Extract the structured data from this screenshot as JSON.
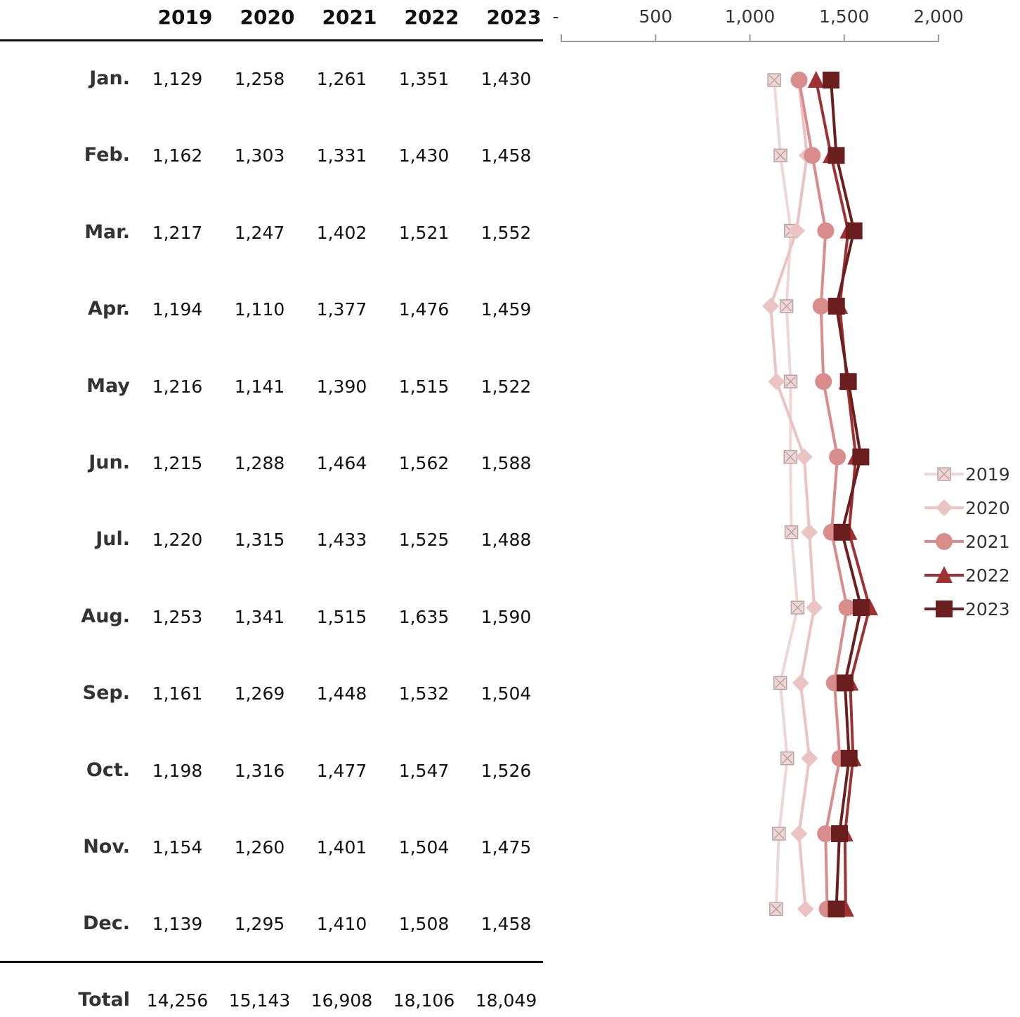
{
  "table": {
    "years": [
      "2019",
      "2020",
      "2021",
      "2022",
      "2023"
    ],
    "rows": [
      {
        "month": "Jan.",
        "values": [
          "1,129",
          "1,258",
          "1,261",
          "1,351",
          "1,430"
        ]
      },
      {
        "month": "Feb.",
        "values": [
          "1,162",
          "1,303",
          "1,331",
          "1,430",
          "1,458"
        ]
      },
      {
        "month": "Mar.",
        "values": [
          "1,217",
          "1,247",
          "1,402",
          "1,521",
          "1,552"
        ]
      },
      {
        "month": "Apr.",
        "values": [
          "1,194",
          "1,110",
          "1,377",
          "1,476",
          "1,459"
        ]
      },
      {
        "month": "May",
        "values": [
          "1,216",
          "1,141",
          "1,390",
          "1,515",
          "1,522"
        ]
      },
      {
        "month": "Jun.",
        "values": [
          "1,215",
          "1,288",
          "1,464",
          "1,562",
          "1,588"
        ]
      },
      {
        "month": "Jul.",
        "values": [
          "1,220",
          "1,315",
          "1,433",
          "1,525",
          "1,488"
        ]
      },
      {
        "month": "Aug.",
        "values": [
          "1,253",
          "1,341",
          "1,515",
          "1,635",
          "1,590"
        ]
      },
      {
        "month": "Sep.",
        "values": [
          "1,161",
          "1,269",
          "1,448",
          "1,532",
          "1,504"
        ]
      },
      {
        "month": "Oct.",
        "values": [
          "1,198",
          "1,316",
          "1,477",
          "1,547",
          "1,526"
        ]
      },
      {
        "month": "Nov.",
        "values": [
          "1,154",
          "1,260",
          "1,401",
          "1,504",
          "1,475"
        ]
      },
      {
        "month": "Dec.",
        "values": [
          "1,139",
          "1,295",
          "1,410",
          "1,508",
          "1,458"
        ]
      }
    ],
    "total": {
      "label": "Total",
      "values": [
        "14,256",
        "15,143",
        "16,908",
        "18,106",
        "18,049"
      ]
    }
  },
  "chart_data": {
    "type": "line",
    "orientation": "vertical-categories",
    "categories": [
      "Jan.",
      "Feb.",
      "Mar.",
      "Apr.",
      "May",
      "Jun.",
      "Jul.",
      "Aug.",
      "Sep.",
      "Oct.",
      "Nov.",
      "Dec."
    ],
    "xlim": [
      0,
      2000
    ],
    "tick_values": [
      0,
      500,
      1000,
      1500,
      2000
    ],
    "tick_labels": [
      "-",
      "500",
      "1,000",
      "1,500",
      "2,000"
    ],
    "legend_position": "right",
    "grid": false,
    "series": [
      {
        "name": "2019",
        "color": "#f0d7d7",
        "marker": "square-x",
        "values": [
          1129,
          1162,
          1217,
          1194,
          1216,
          1215,
          1220,
          1253,
          1161,
          1198,
          1154,
          1139
        ]
      },
      {
        "name": "2020",
        "color": "#ebc3c3",
        "marker": "diamond",
        "values": [
          1258,
          1303,
          1247,
          1110,
          1141,
          1288,
          1315,
          1341,
          1269,
          1316,
          1260,
          1295
        ]
      },
      {
        "name": "2021",
        "color": "#d98c8c",
        "marker": "circle",
        "values": [
          1261,
          1331,
          1402,
          1377,
          1390,
          1464,
          1433,
          1515,
          1448,
          1477,
          1401,
          1410
        ]
      },
      {
        "name": "2022",
        "color": "#9e3232",
        "marker": "triangle",
        "values": [
          1351,
          1430,
          1521,
          1476,
          1515,
          1562,
          1525,
          1635,
          1532,
          1547,
          1504,
          1508
        ]
      },
      {
        "name": "2023",
        "color": "#6b1e1e",
        "marker": "square",
        "values": [
          1430,
          1458,
          1552,
          1459,
          1522,
          1588,
          1488,
          1590,
          1504,
          1526,
          1475,
          1458
        ]
      }
    ]
  }
}
